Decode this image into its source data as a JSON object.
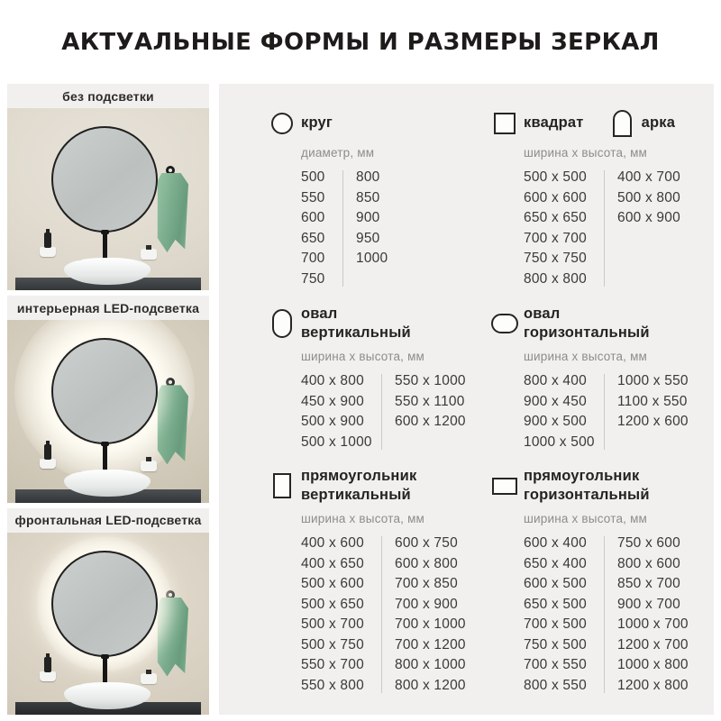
{
  "title": "АКТУАЛЬНЫЕ ФОРМЫ И РАЗМЕРЫ ЗЕРКАЛ",
  "photos": [
    {
      "label": "без подсветки",
      "variant": "plain"
    },
    {
      "label": "интерьерная LED-подсветка",
      "variant": "interior"
    },
    {
      "label": "фронтальная LED-подсветка",
      "variant": "frontal"
    }
  ],
  "sections": {
    "circle": {
      "title": "круг",
      "subtitle": "диаметр, мм",
      "col_a": [
        "500",
        "550",
        "600",
        "650",
        "700",
        "750"
      ],
      "col_b": [
        "800",
        "850",
        "900",
        "950",
        "1000"
      ]
    },
    "square_arch": {
      "title_square": "квадрат",
      "title_arch": "арка",
      "subtitle": "ширина x высота, мм",
      "col_a": [
        "500 x 500",
        "600 x 600",
        "650 x 650",
        "700 x 700",
        "750 x 750",
        "800 x 800"
      ],
      "col_b": [
        "400 x 700",
        "500 x 800",
        "600 x 900"
      ]
    },
    "oval_vertical": {
      "title_line1": "овал",
      "title_line2": "вертикальный",
      "subtitle": "ширина x высота, мм",
      "col_a": [
        "400 x 800",
        "450 x 900",
        "500 x 900",
        "500 x 1000"
      ],
      "col_b": [
        "550 x 1000",
        "550 x 1100",
        "600 x 1200"
      ]
    },
    "oval_horizontal": {
      "title_line1": "овал",
      "title_line2": "горизонтальный",
      "subtitle": "ширина x высота, мм",
      "col_a": [
        "800 x 400",
        "900 x 450",
        "900 x 500",
        "1000 x 500"
      ],
      "col_b": [
        "1000 x 550",
        "1100 x 550",
        "1200 x 600"
      ]
    },
    "rect_vertical": {
      "title_line1": "прямоугольник",
      "title_line2": "вертикальный",
      "subtitle": "ширина x высота, мм",
      "col_a": [
        "400 x 600",
        "400 x 650",
        "500 x 600",
        "500 x 650",
        "500 x 700",
        "500 x 750",
        "550 x 700",
        "550 x 800"
      ],
      "col_b": [
        "600 x 750",
        "600 x 800",
        "700 x 850",
        "700 x 900",
        "700 x 1000",
        "700 x 1200",
        "800 x 1000",
        "800 x 1200"
      ]
    },
    "rect_horizontal": {
      "title_line1": "прямоугольник",
      "title_line2": "горизонтальный",
      "subtitle": "ширина x высота, мм",
      "col_a": [
        "600 x 400",
        "650 x 400",
        "600 x 500",
        "650 x 500",
        "700 x 500",
        "750 x 500",
        "700 x 550",
        "800 x 550"
      ],
      "col_b": [
        "750 x 600",
        "800 x 600",
        "850 x 700",
        "900 x 700",
        "1000 x 700",
        "1200 x 700",
        "1000 x 800",
        "1200 x 800"
      ]
    }
  },
  "icons": {
    "circle-shape-icon": "outlined circle",
    "square-shape-icon": "outlined square",
    "arch-shape-icon": "outlined arch (round top)",
    "oval-vertical-shape-icon": "outlined vertical oval",
    "oval-horizontal-shape-icon": "outlined horizontal oval",
    "rect-vertical-shape-icon": "outlined vertical rectangle",
    "rect-horizontal-shape-icon": "outlined horizontal rectangle"
  },
  "palette": {
    "panel_bg": "#f1f0ee",
    "title_text": "#1d1c1a",
    "number_text": "#3b3937",
    "muted_text": "#8f8c88",
    "divider": "#ccc9c5",
    "towel_green": "#7fb291",
    "counter_dark": "#3a3d40",
    "wall_beige": "#ded8cc"
  }
}
